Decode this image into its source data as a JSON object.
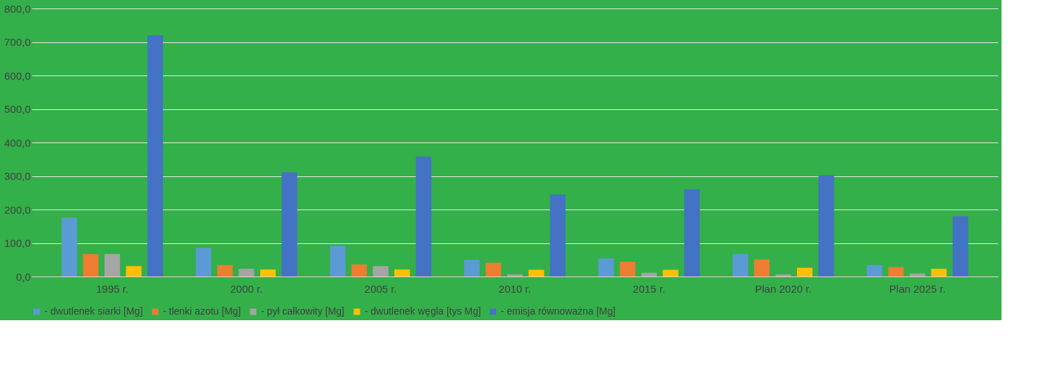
{
  "chart_data": {
    "type": "bar",
    "categories": [
      "1995 r.",
      "2000 r.",
      "2005 r.",
      "2010 r.",
      "2015 r.",
      "Plan 2020 r.",
      "Plan 2025 r."
    ],
    "series": [
      {
        "name": "- dwutlenek siarki [Mg]",
        "color": "#5b9bd5",
        "values": [
          176,
          85,
          91,
          50,
          54,
          67,
          34
        ]
      },
      {
        "name": "- tlenki azotu [Mg]",
        "color": "#ed7d31",
        "values": [
          67,
          34,
          36,
          41,
          44,
          51,
          28
        ]
      },
      {
        "name": "- pył całkowity [Mg]",
        "color": "#a5a5a5",
        "values": [
          67,
          23,
          31,
          6,
          11,
          6,
          9
        ]
      },
      {
        "name": "- dwutlenek węgla [tys Mg]",
        "color": "#ffc000",
        "values": [
          31,
          21,
          21,
          20,
          20,
          26,
          23
        ]
      },
      {
        "name": "- emisja równoważna [Mg]",
        "color": "#4472c4",
        "values": [
          720,
          311,
          358,
          245,
          260,
          302,
          180
        ]
      }
    ],
    "ylim": [
      0,
      800
    ],
    "yticks": [
      {
        "value": 0,
        "label": "0,0"
      },
      {
        "value": 100,
        "label": "100,0"
      },
      {
        "value": 200,
        "label": "200,0"
      },
      {
        "value": 300,
        "label": "300,0"
      },
      {
        "value": 400,
        "label": "400,0"
      },
      {
        "value": 500,
        "label": "500,0"
      },
      {
        "value": 600,
        "label": "600,0"
      },
      {
        "value": 700,
        "label": "700,0"
      },
      {
        "value": 800,
        "label": "800,0"
      }
    ],
    "grid": "y",
    "legend": "bottom"
  }
}
